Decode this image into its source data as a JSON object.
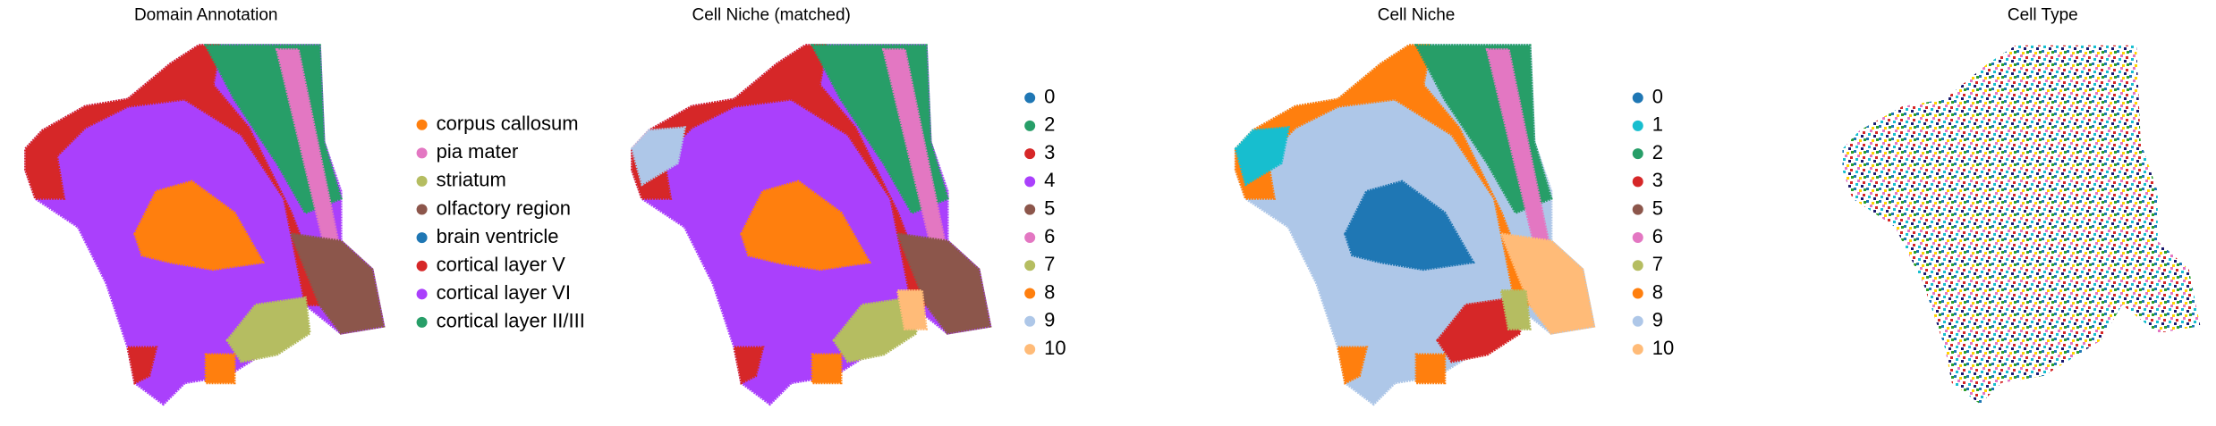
{
  "chart_data": [
    {
      "type": "scatter",
      "title": "Domain Annotation",
      "series": [
        {
          "name": "corpus callosum",
          "color": "#ff7f0e"
        },
        {
          "name": "pia mater",
          "color": "#e377c2"
        },
        {
          "name": "striatum",
          "color": "#b5bd61"
        },
        {
          "name": "olfactory region",
          "color": "#8c564b"
        },
        {
          "name": "brain ventricle",
          "color": "#1f77b4"
        },
        {
          "name": "cortical layer V",
          "color": "#d62728"
        },
        {
          "name": "cortical layer VI",
          "color": "#aa40fc"
        },
        {
          "name": "cortical layer II/III",
          "color": "#279e68"
        }
      ]
    },
    {
      "type": "scatter",
      "title": "Cell Niche (matched)",
      "series": [
        {
          "name": "0",
          "color": "#1f77b4"
        },
        {
          "name": "2",
          "color": "#279e68"
        },
        {
          "name": "3",
          "color": "#d62728"
        },
        {
          "name": "4",
          "color": "#aa40fc"
        },
        {
          "name": "5",
          "color": "#8c564b"
        },
        {
          "name": "6",
          "color": "#e377c2"
        },
        {
          "name": "7",
          "color": "#b5bd61"
        },
        {
          "name": "8",
          "color": "#ff7f0e"
        },
        {
          "name": "9",
          "color": "#aec7e8"
        },
        {
          "name": "10",
          "color": "#ffbb78"
        }
      ]
    },
    {
      "type": "scatter",
      "title": "Cell Niche",
      "series": [
        {
          "name": "0",
          "color": "#1f77b4"
        },
        {
          "name": "1",
          "color": "#17becf"
        },
        {
          "name": "2",
          "color": "#279e68"
        },
        {
          "name": "3",
          "color": "#d62728"
        },
        {
          "name": "5",
          "color": "#8c564b"
        },
        {
          "name": "6",
          "color": "#e377c2"
        },
        {
          "name": "7",
          "color": "#b5bd61"
        },
        {
          "name": "8",
          "color": "#ff7f0e"
        },
        {
          "name": "9",
          "color": "#aec7e8"
        },
        {
          "name": "10",
          "color": "#ffbb78"
        }
      ]
    },
    {
      "type": "scatter",
      "title": "Cell Type"
    }
  ]
}
